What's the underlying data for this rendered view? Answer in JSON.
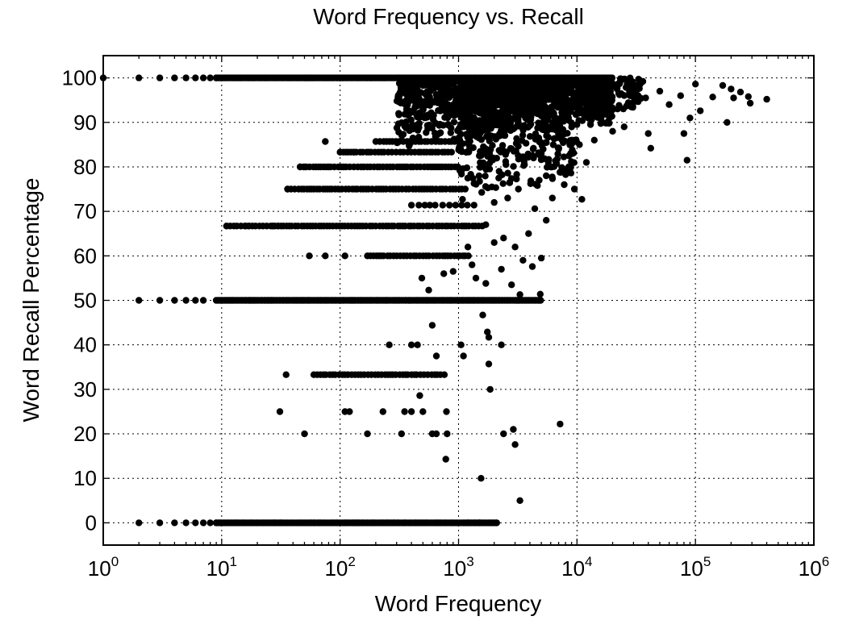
{
  "chart_data": {
    "type": "scatter",
    "title": "Word Frequency vs. Recall",
    "xlabel": "Word Frequency",
    "ylabel": "Word Recall Percentage",
    "xscale": "log",
    "xlim": [
      1,
      1000000
    ],
    "ylim": [
      -5,
      105
    ],
    "x_ticks": [
      {
        "base": "10",
        "exp": "0",
        "value": 1
      },
      {
        "base": "10",
        "exp": "1",
        "value": 10
      },
      {
        "base": "10",
        "exp": "2",
        "value": 100
      },
      {
        "base": "10",
        "exp": "3",
        "value": 1000
      },
      {
        "base": "10",
        "exp": "4",
        "value": 10000
      },
      {
        "base": "10",
        "exp": "5",
        "value": 100000
      },
      {
        "base": "10",
        "exp": "6",
        "value": 1000000
      }
    ],
    "y_ticks": [
      0,
      10,
      20,
      30,
      40,
      50,
      60,
      70,
      80,
      90,
      100
    ],
    "grid": true,
    "marker_color": "#000000",
    "bands": [
      {
        "y": 100,
        "x_from": 1,
        "x_to": 20000,
        "density": "dense",
        "isolated_x": [
          1,
          2,
          3,
          4,
          5,
          6,
          7,
          8,
          9
        ]
      },
      {
        "y": 0,
        "x_from": 1,
        "x_to": 2100,
        "density": "dense",
        "isolated_x": [
          2,
          3,
          4,
          5,
          6,
          7,
          8,
          9,
          1200,
          1500,
          2100
        ]
      },
      {
        "y": 50,
        "x_from": 9,
        "x_to": 5000,
        "density": "dense",
        "isolated_x": [
          2,
          3,
          4,
          5,
          6,
          7
        ]
      },
      {
        "y": 66.7,
        "x_from": 11,
        "x_to": 1600,
        "density": "medium",
        "isolated_x": [
          11,
          16,
          17,
          27,
          30
        ]
      },
      {
        "y": 75,
        "x_from": 36,
        "x_to": 1200,
        "density": "medium",
        "isolated_x": [
          36
        ]
      },
      {
        "y": 80,
        "x_from": 46,
        "x_to": 1000,
        "density": "medium",
        "isolated_x": [
          46,
          50,
          80
        ]
      },
      {
        "y": 83.3,
        "x_from": 100,
        "x_to": 900,
        "density": "medium",
        "isolated_x": [
          100,
          130
        ]
      },
      {
        "y": 85.7,
        "x_from": 200,
        "x_to": 1000,
        "density": "medium",
        "isolated_x": [
          75
        ]
      },
      {
        "y": 60,
        "x_from": 170,
        "x_to": 1300,
        "density": "medium",
        "isolated_x": [
          55,
          75,
          110
        ]
      },
      {
        "y": 71.4,
        "x_from": 400,
        "x_to": 1500,
        "density": "sparse",
        "isolated_x": []
      },
      {
        "y": 33.3,
        "x_from": 60,
        "x_to": 800,
        "density": "medium",
        "isolated_x": [
          35
        ]
      }
    ],
    "points": [
      {
        "x": 31,
        "y": 25
      },
      {
        "x": 50,
        "y": 20
      },
      {
        "x": 110,
        "y": 25
      },
      {
        "x": 120,
        "y": 25
      },
      {
        "x": 170,
        "y": 20
      },
      {
        "x": 230,
        "y": 25
      },
      {
        "x": 260,
        "y": 40
      },
      {
        "x": 330,
        "y": 20
      },
      {
        "x": 350,
        "y": 25
      },
      {
        "x": 400,
        "y": 25
      },
      {
        "x": 470,
        "y": 28.6
      },
      {
        "x": 500,
        "y": 25
      },
      {
        "x": 400,
        "y": 40
      },
      {
        "x": 450,
        "y": 40
      },
      {
        "x": 600,
        "y": 20
      },
      {
        "x": 650,
        "y": 20
      },
      {
        "x": 780,
        "y": 14.3
      },
      {
        "x": 800,
        "y": 20
      },
      {
        "x": 790,
        "y": 25
      },
      {
        "x": 600,
        "y": 44.4
      },
      {
        "x": 650,
        "y": 37.5
      },
      {
        "x": 1050,
        "y": 40
      },
      {
        "x": 1100,
        "y": 37.5
      },
      {
        "x": 1550,
        "y": 10
      },
      {
        "x": 1600,
        "y": 46.7
      },
      {
        "x": 1750,
        "y": 42.9
      },
      {
        "x": 1800,
        "y": 41.7
      },
      {
        "x": 1800,
        "y": 35.7
      },
      {
        "x": 1850,
        "y": 30
      },
      {
        "x": 2400,
        "y": 20
      },
      {
        "x": 2300,
        "y": 40
      },
      {
        "x": 2900,
        "y": 21
      },
      {
        "x": 3000,
        "y": 17.6
      },
      {
        "x": 3300,
        "y": 5
      },
      {
        "x": 7200,
        "y": 22.2
      },
      {
        "x": 490,
        "y": 55
      },
      {
        "x": 560,
        "y": 52.3
      },
      {
        "x": 750,
        "y": 56
      },
      {
        "x": 900,
        "y": 56.5
      },
      {
        "x": 1400,
        "y": 55
      },
      {
        "x": 1700,
        "y": 53.8
      },
      {
        "x": 2800,
        "y": 53.5
      },
      {
        "x": 3300,
        "y": 51.3
      },
      {
        "x": 4900,
        "y": 51.4
      },
      {
        "x": 1200,
        "y": 62
      },
      {
        "x": 1300,
        "y": 58
      },
      {
        "x": 2000,
        "y": 63
      },
      {
        "x": 2300,
        "y": 57
      },
      {
        "x": 3000,
        "y": 62
      },
      {
        "x": 3500,
        "y": 59
      },
      {
        "x": 4200,
        "y": 57.6
      },
      {
        "x": 5000,
        "y": 59.5
      },
      {
        "x": 1700,
        "y": 67
      },
      {
        "x": 2400,
        "y": 64
      },
      {
        "x": 3900,
        "y": 65
      },
      {
        "x": 4400,
        "y": 70.6
      },
      {
        "x": 5500,
        "y": 68
      },
      {
        "x": 2000,
        "y": 72
      },
      {
        "x": 2600,
        "y": 73
      },
      {
        "x": 3200,
        "y": 75
      },
      {
        "x": 6200,
        "y": 73
      },
      {
        "x": 7800,
        "y": 76
      },
      {
        "x": 9500,
        "y": 75
      },
      {
        "x": 11000,
        "y": 72.7
      },
      {
        "x": 12000,
        "y": 81
      },
      {
        "x": 8500,
        "y": 80
      },
      {
        "x": 10500,
        "y": 85
      },
      {
        "x": 14000,
        "y": 86
      },
      {
        "x": 20000,
        "y": 88
      },
      {
        "x": 25000,
        "y": 89
      },
      {
        "x": 42000,
        "y": 84.2
      },
      {
        "x": 40000,
        "y": 87.5
      },
      {
        "x": 80000,
        "y": 87.5
      },
      {
        "x": 85000,
        "y": 81.5
      },
      {
        "x": 90000,
        "y": 91
      },
      {
        "x": 110000,
        "y": 92.6
      },
      {
        "x": 185000,
        "y": 90
      },
      {
        "x": 50000,
        "y": 97
      },
      {
        "x": 60000,
        "y": 94
      },
      {
        "x": 75000,
        "y": 96
      },
      {
        "x": 100000,
        "y": 98.6
      },
      {
        "x": 140000,
        "y": 95.7
      },
      {
        "x": 170000,
        "y": 98.3
      },
      {
        "x": 200000,
        "y": 97.5
      },
      {
        "x": 240000,
        "y": 96.8
      },
      {
        "x": 280000,
        "y": 95.8
      },
      {
        "x": 290000,
        "y": 94.3
      },
      {
        "x": 400000,
        "y": 95.2
      },
      {
        "x": 210000,
        "y": 95.5
      },
      {
        "x": 28000,
        "y": 96
      },
      {
        "x": 33000,
        "y": 98.5
      },
      {
        "x": 36000,
        "y": 99.2
      },
      {
        "x": 38000,
        "y": 95.5
      },
      {
        "x": 30000,
        "y": 94.5
      },
      {
        "x": 22000,
        "y": 93
      },
      {
        "x": 18000,
        "y": 91.7
      },
      {
        "x": 16000,
        "y": 90.5
      },
      {
        "x": 13000,
        "y": 89.5
      },
      {
        "x": 9000,
        "y": 86
      },
      {
        "x": 7000,
        "y": 84
      },
      {
        "x": 6000,
        "y": 80
      },
      {
        "x": 5500,
        "y": 78
      },
      {
        "x": 4800,
        "y": 77
      },
      {
        "x": 4300,
        "y": 82
      },
      {
        "x": 3600,
        "y": 80.5
      },
      {
        "x": 3100,
        "y": 78.3
      },
      {
        "x": 2700,
        "y": 76.5
      },
      {
        "x": 2500,
        "y": 81.2
      },
      {
        "x": 2200,
        "y": 79
      }
    ],
    "cloud": [
      {
        "x_from": 300,
        "x_to": 3000,
        "y_from": 84,
        "y_to": 100,
        "count": 520
      },
      {
        "x_from": 1000,
        "x_to": 20000,
        "y_from": 86,
        "y_to": 100,
        "count": 700
      },
      {
        "x_from": 3000,
        "x_to": 35000,
        "y_from": 90,
        "y_to": 100,
        "count": 260
      },
      {
        "x_from": 1000,
        "x_to": 10000,
        "y_from": 72,
        "y_to": 90,
        "count": 220
      }
    ]
  }
}
